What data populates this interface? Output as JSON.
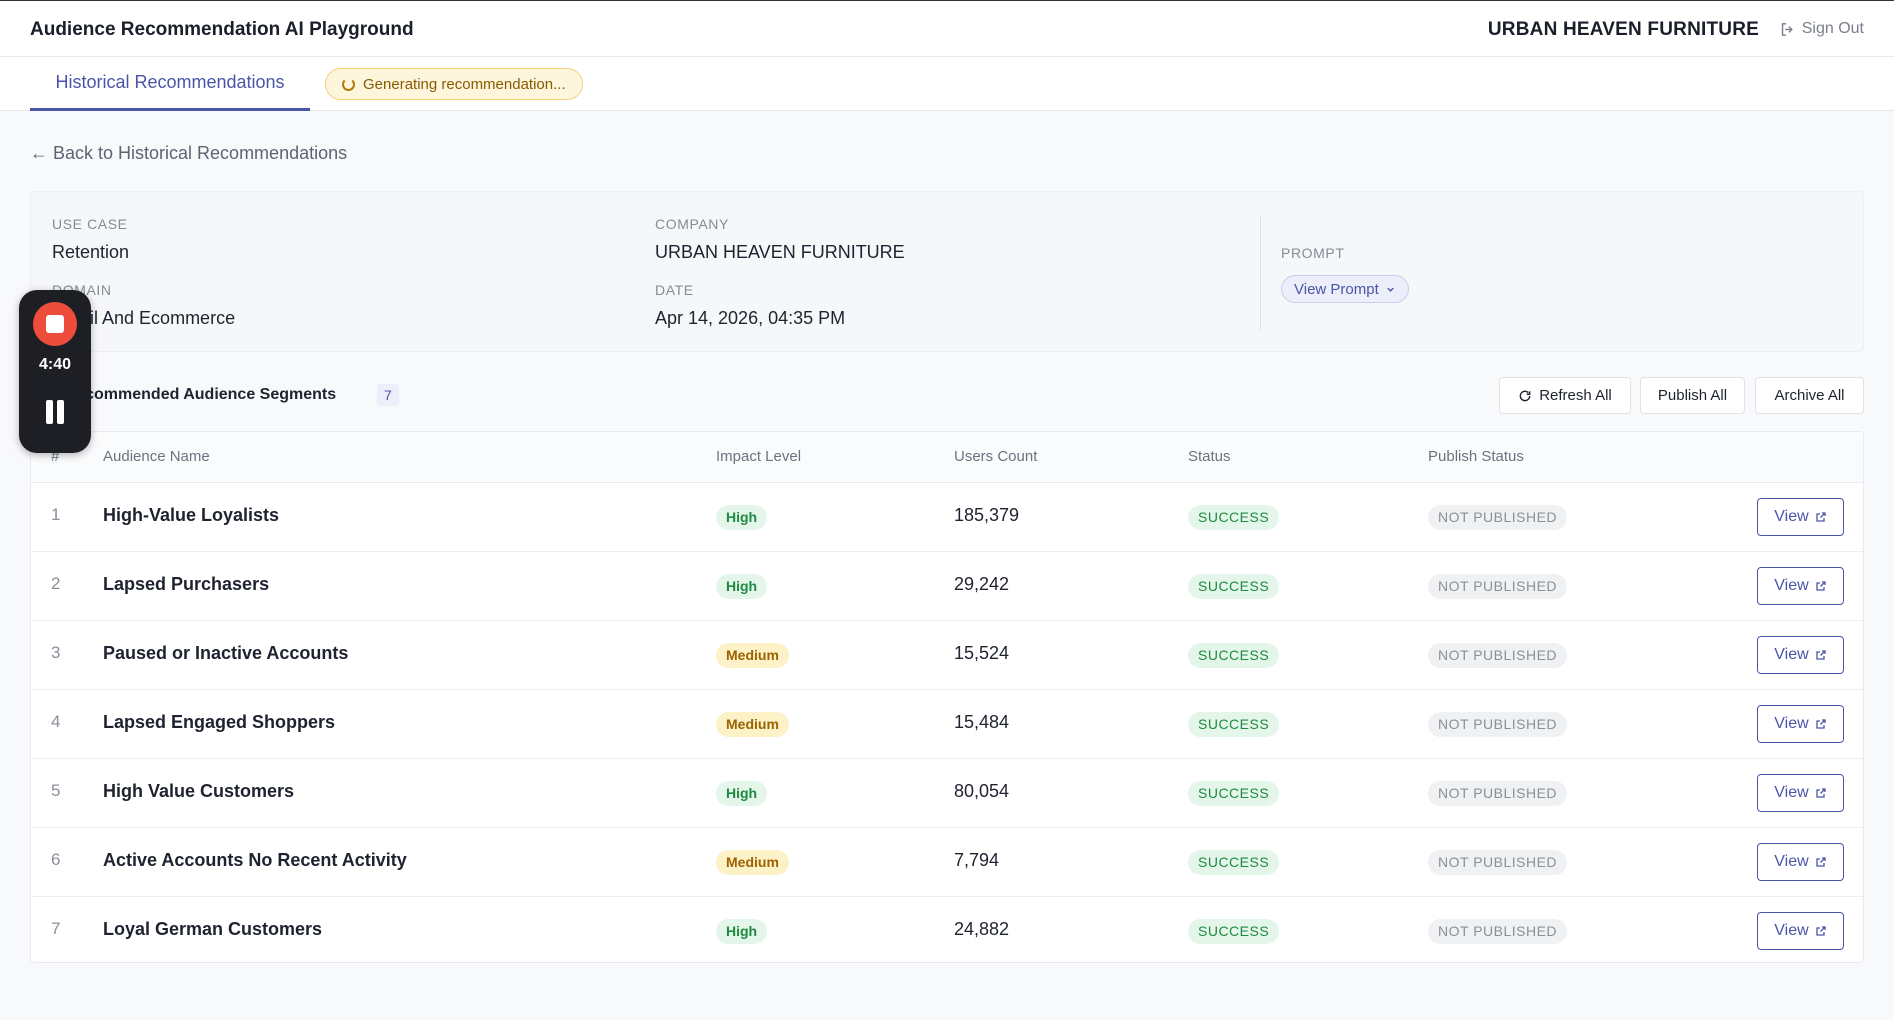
{
  "header": {
    "app_title": "Audience Recommendation AI Playground",
    "company": "URBAN HEAVEN FURNITURE",
    "sign_out": "Sign Out"
  },
  "tabs": {
    "active": "Historical Recommendations",
    "generating": "Generating recommendation..."
  },
  "back_link": "← Back to Historical Recommendations",
  "info": {
    "use_case_label": "USE CASE",
    "use_case": "Retention",
    "domain_label": "DOMAIN",
    "domain": "Retail And Ecommerce",
    "company_label": "COMPANY",
    "company": "URBAN HEAVEN FURNITURE",
    "date_label": "DATE",
    "date": "Apr 14, 2026, 04:35 PM",
    "prompt_label": "PROMPT",
    "view_prompt": "View Prompt"
  },
  "recorder": {
    "time": "4:40"
  },
  "section": {
    "title": "All - Recommended Audience Segments",
    "count": "7",
    "refresh_all": "Refresh All",
    "publish_all": "Publish All",
    "archive_all": "Archive All"
  },
  "table": {
    "columns": [
      "#",
      "Audience Name",
      "Impact Level",
      "Users Count",
      "Status",
      "Publish Status"
    ],
    "view_label": "View",
    "rows": [
      {
        "num": "1",
        "name": "High-Value Loyalists",
        "impact": "High",
        "users": "185,379",
        "status": "SUCCESS",
        "publish": "NOT PUBLISHED"
      },
      {
        "num": "2",
        "name": "Lapsed Purchasers",
        "impact": "High",
        "users": "29,242",
        "status": "SUCCESS",
        "publish": "NOT PUBLISHED"
      },
      {
        "num": "3",
        "name": "Paused or Inactive Accounts",
        "impact": "Medium",
        "users": "15,524",
        "status": "SUCCESS",
        "publish": "NOT PUBLISHED"
      },
      {
        "num": "4",
        "name": "Lapsed Engaged Shoppers",
        "impact": "Medium",
        "users": "15,484",
        "status": "SUCCESS",
        "publish": "NOT PUBLISHED"
      },
      {
        "num": "5",
        "name": "High Value Customers",
        "impact": "High",
        "users": "80,054",
        "status": "SUCCESS",
        "publish": "NOT PUBLISHED"
      },
      {
        "num": "6",
        "name": "Active Accounts No Recent Activity",
        "impact": "Medium",
        "users": "7,794",
        "status": "SUCCESS",
        "publish": "NOT PUBLISHED"
      },
      {
        "num": "7",
        "name": "Loyal German Customers",
        "impact": "High",
        "users": "24,882",
        "status": "SUCCESS",
        "publish": "NOT PUBLISHED"
      }
    ]
  },
  "colors": {
    "accent": "#4a55a8",
    "success": "#1e8a3f",
    "warning": "#9a6200",
    "record": "#ef4d3c"
  }
}
